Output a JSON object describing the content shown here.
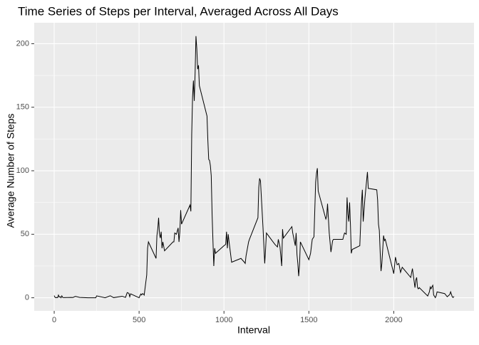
{
  "chart_data": {
    "type": "line",
    "title": "Time Series of Steps per Interval, Averaged Across All Days",
    "x_label": "Interval",
    "y_label": "Average Number of Steps",
    "xlim": [
      -117.75,
      2472.75
    ],
    "ylim": [
      -10.3,
      216.5
    ],
    "xticks": [
      0,
      500,
      1000,
      1500,
      2000
    ],
    "yticks": [
      0,
      50,
      100,
      150,
      200
    ],
    "x_minor_ticks": [
      250,
      750,
      1250,
      1750,
      2250
    ],
    "y_minor_ticks": [
      25,
      75,
      125,
      175
    ],
    "grid": true,
    "series": [
      {
        "color": "#000000",
        "x": [
          0,
          5,
          10,
          15,
          20,
          25,
          30,
          35,
          40,
          45,
          50,
          55,
          100,
          110,
          125,
          150,
          200,
          230,
          245,
          250,
          300,
          330,
          350,
          400,
          420,
          430,
          440,
          445,
          450,
          500,
          505,
          510,
          515,
          520,
          525,
          530,
          545,
          550,
          555,
          600,
          605,
          610,
          615,
          620,
          625,
          630,
          635,
          640,
          650,
          700,
          705,
          710,
          720,
          730,
          735,
          740,
          745,
          750,
          800,
          805,
          810,
          815,
          820,
          825,
          830,
          835,
          840,
          845,
          850,
          855,
          900,
          905,
          910,
          915,
          920,
          925,
          930,
          935,
          940,
          945,
          950,
          1000,
          1010,
          1015,
          1020,
          1025,
          1030,
          1045,
          1100,
          1120,
          1125,
          1130,
          1145,
          1150,
          1200,
          1205,
          1210,
          1215,
          1230,
          1240,
          1245,
          1250,
          1300,
          1315,
          1320,
          1330,
          1340,
          1345,
          1350,
          1400,
          1405,
          1420,
          1425,
          1430,
          1435,
          1440,
          1445,
          1450,
          1500,
          1510,
          1520,
          1530,
          1540,
          1545,
          1550,
          1555,
          1600,
          1605,
          1610,
          1620,
          1630,
          1640,
          1645,
          1700,
          1710,
          1720,
          1725,
          1730,
          1735,
          1740,
          1745,
          1750,
          1755,
          1800,
          1805,
          1810,
          1815,
          1820,
          1830,
          1845,
          1850,
          1855,
          1900,
          1905,
          1910,
          1915,
          1920,
          1925,
          1930,
          1940,
          1945,
          1950,
          2000,
          2010,
          2020,
          2030,
          2040,
          2050,
          2100,
          2110,
          2125,
          2130,
          2135,
          2140,
          2145,
          2150,
          2200,
          2210,
          2215,
          2220,
          2225,
          2230,
          2235,
          2245,
          2250,
          2255,
          2300,
          2315,
          2330,
          2335,
          2345,
          2350,
          2355
        ],
        "values": [
          1.7,
          0.3,
          0.1,
          0.2,
          0.1,
          2.1,
          0.5,
          0.9,
          0,
          1.5,
          0.3,
          0.1,
          0.3,
          0.2,
          1.1,
          0.3,
          0,
          0,
          0,
          1.5,
          0,
          1.6,
          0.1,
          1.2,
          0.3,
          4.1,
          3.5,
          0.8,
          3.1,
          0,
          1.6,
          3.0,
          2.2,
          3.3,
          3.0,
          2.1,
          18,
          39,
          44,
          31,
          49,
          54,
          63,
          50,
          47,
          52,
          39,
          44,
          37,
          44,
          44,
          51,
          50,
          55,
          44,
          52,
          69,
          58,
          73,
          68,
          129,
          158,
          171,
          155,
          177,
          206,
          196,
          180,
          183,
          167,
          143,
          124,
          109,
          108,
          104,
          96,
          66,
          45,
          25,
          39,
          35,
          41,
          42,
          52,
          39,
          50,
          44,
          28,
          31,
          28,
          27,
          33,
          44,
          46,
          63,
          87,
          94,
          92,
          55,
          27,
          38,
          51,
          42,
          40,
          46,
          40,
          25,
          54,
          47,
          56,
          51,
          41,
          51,
          34,
          27,
          17,
          26,
          44,
          30,
          35,
          46,
          48,
          91,
          98,
          102,
          84,
          62,
          64,
          74,
          51,
          36,
          45,
          46,
          46,
          51,
          50,
          79,
          66,
          60,
          75,
          57,
          35,
          38,
          41,
          58,
          75,
          85,
          60,
          78,
          99,
          86,
          86,
          85,
          77,
          58,
          53,
          36,
          21,
          27,
          49,
          45,
          46,
          19,
          32,
          26,
          27,
          20,
          24,
          16,
          23,
          8,
          14,
          16,
          8,
          7,
          8,
          1.4,
          4.7,
          8.5,
          7.1,
          8.7,
          9.8,
          2.2,
          0.1,
          1.6,
          4.6,
          3.3,
          0.8,
          2.6,
          4.7,
          0.6,
          0.2,
          1.1
        ]
      }
    ]
  }
}
